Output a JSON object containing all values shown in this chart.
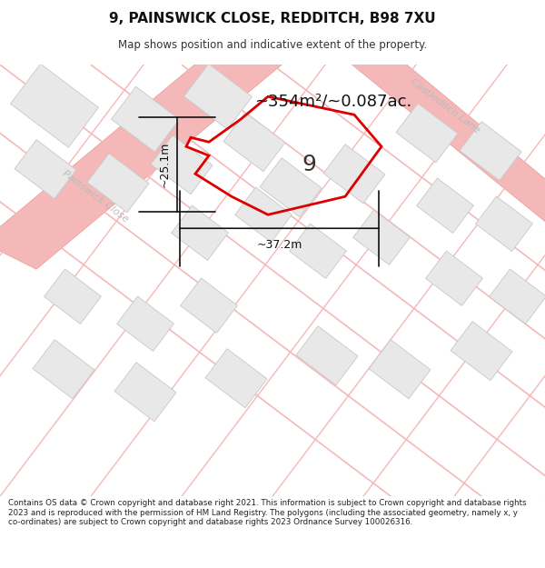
{
  "title": "9, PAINSWICK CLOSE, REDDITCH, B98 7XU",
  "subtitle": "Map shows position and indicative extent of the property.",
  "footer": "Contains OS data © Crown copyright and database right 2021. This information is subject to Crown copyright and database rights 2023 and is reproduced with the permission of HM Land Registry. The polygons (including the associated geometry, namely x, y co-ordinates) are subject to Crown copyright and database rights 2023 Ordnance Survey 100026316.",
  "bg_color": "#ffffff",
  "map_bg": "#ffffff",
  "area_text": "~354m²/~0.087ac.",
  "label_9": "9",
  "dim_h": "~25.1m",
  "dim_w": "~37.2m",
  "road_label_1": "Painswick Close",
  "road_label_2": "Castleditch Lane",
  "plot_color": "#dd0000",
  "plot_lw": 2.0,
  "road_color": "#f5b8b8",
  "road_edge": "#e89898",
  "building_fill": "#e8e8e8",
  "building_edge": "#c8c8c8",
  "dim_color": "#111111",
  "road_label_color": "#bbbbbb",
  "area_text_color": "#111111",
  "label9_color": "#333333",
  "footer_bg": "#f5f5f5",
  "ang": -37
}
